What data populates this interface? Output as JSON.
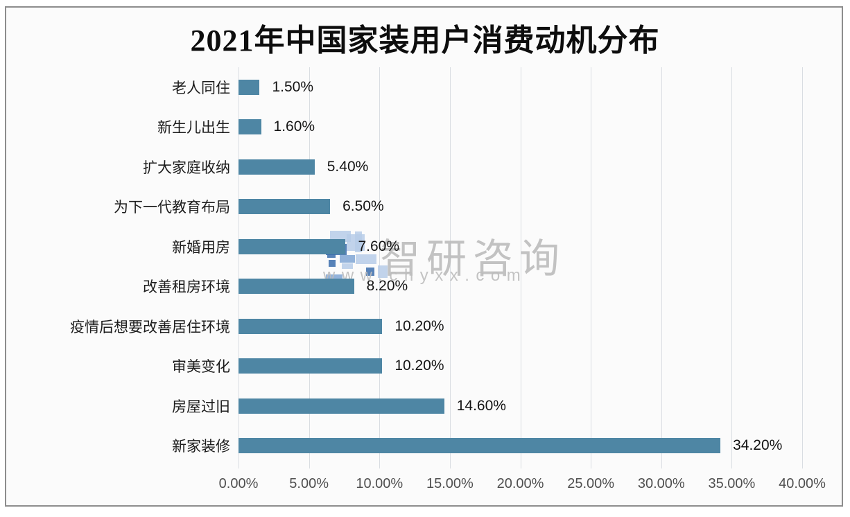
{
  "chart_data": {
    "type": "bar",
    "orientation": "horizontal",
    "title": "2021年中国家装用户消费动机分布",
    "categories": [
      "老人同住",
      "新生儿出生",
      "扩大家庭收纳",
      "为下一代教育布局",
      "新婚用房",
      "改善租房环境",
      "疫情后想要改善居住环境",
      "审美变化",
      "房屋过旧",
      "新家装修"
    ],
    "values": [
      1.5,
      1.6,
      5.4,
      6.5,
      7.6,
      8.2,
      10.2,
      10.2,
      14.6,
      34.2
    ],
    "value_labels": [
      "1.50%",
      "1.60%",
      "5.40%",
      "6.50%",
      "7.60%",
      "8.20%",
      "10.20%",
      "10.20%",
      "14.60%",
      "34.20%"
    ],
    "x_ticks": [
      "0.00%",
      "5.00%",
      "10.00%",
      "15.00%",
      "20.00%",
      "25.00%",
      "30.00%",
      "35.00%",
      "40.00%"
    ],
    "xlim": [
      0,
      40
    ],
    "xlabel": "",
    "ylabel": "",
    "grid": "vertical",
    "legend_position": "none",
    "bar_color": "#4E86A4",
    "gridline_color": "#d9dde2"
  },
  "watermark": {
    "brand": "智研咨询",
    "url": "www.chyxx.com",
    "logo_colors": {
      "light": "#b6cbe7",
      "mid": "#7fa4d4",
      "dark": "#3a6cab"
    }
  }
}
